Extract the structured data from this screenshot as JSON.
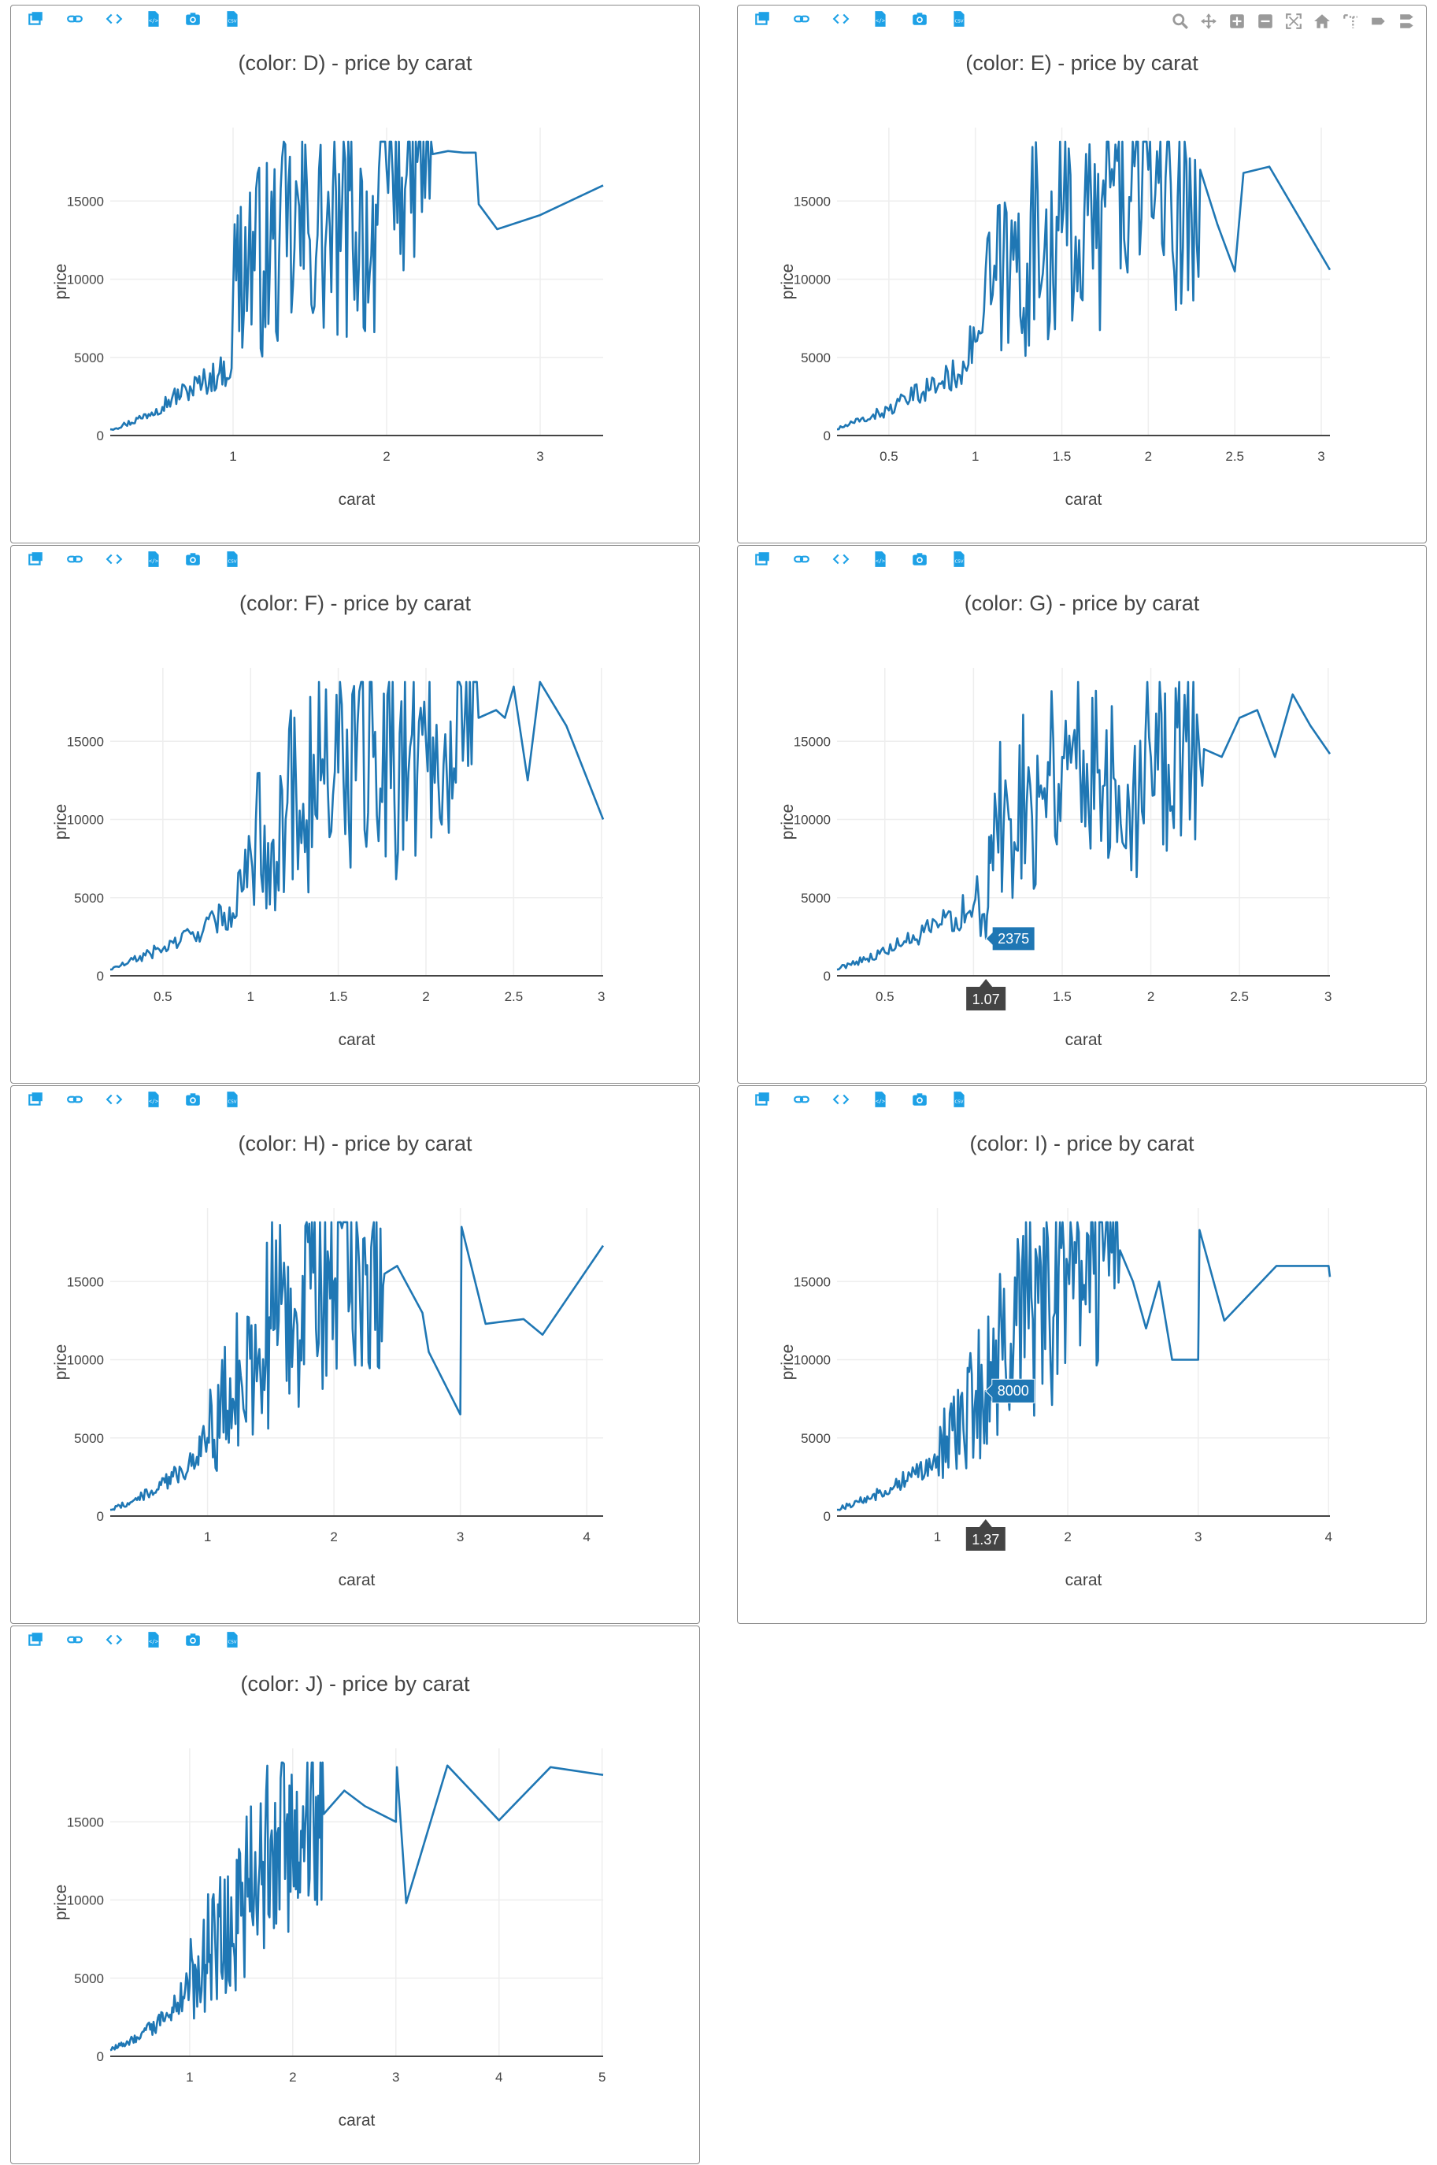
{
  "colors": {
    "line": "#1f77b4",
    "toolbar_icon": "#1da1e6",
    "modebar_icon": "#9a9a9a",
    "hover_x_bg": "#444444"
  },
  "toolbar": {
    "buttons": [
      {
        "icon": "new-window-icon"
      },
      {
        "icon": "link-icon"
      },
      {
        "icon": "code-icon"
      },
      {
        "icon": "html-file-icon"
      },
      {
        "icon": "camera-icon"
      },
      {
        "icon": "csv-file-icon"
      }
    ]
  },
  "modebar": {
    "buttons": [
      {
        "icon": "zoom-icon"
      },
      {
        "icon": "pan-icon"
      },
      {
        "icon": "zoom-in-icon"
      },
      {
        "icon": "zoom-out-icon"
      },
      {
        "icon": "autoscale-icon"
      },
      {
        "icon": "reset-axes-icon"
      },
      {
        "icon": "spike-lines-icon"
      },
      {
        "icon": "hover-closest-icon"
      },
      {
        "icon": "hover-compare-icon"
      }
    ]
  },
  "chart_data": [
    {
      "type": "line",
      "title": "(color: D) - price by carat",
      "xlabel": "carat",
      "ylabel": "price",
      "xlim": [
        0.2,
        3.41
      ],
      "ylim": [
        0,
        19700
      ],
      "xticks": [
        1,
        2,
        3
      ],
      "xtick_labels": [
        "1",
        "2",
        "3"
      ],
      "yticks": [
        0,
        5000,
        10000,
        15000
      ],
      "ytick_labels": [
        "0",
        "5000",
        "10000",
        "15000"
      ],
      "series": [
        {
          "name": "price",
          "x": [
            0.2,
            0.3,
            0.4,
            0.5,
            0.6,
            0.7,
            0.8,
            0.9,
            0.99,
            1.0,
            1.1,
            1.2,
            1.3,
            1.4,
            1.5,
            1.6,
            1.7,
            1.8,
            1.9,
            2.0,
            2.1,
            2.2,
            2.3,
            2.4,
            2.5,
            2.58,
            2.6,
            2.72,
            3.0,
            3.41
          ],
          "y": [
            400,
            700,
            1100,
            1700,
            2300,
            2800,
            3300,
            3800,
            4300,
            9000,
            11000,
            10500,
            11500,
            12000,
            12500,
            12000,
            11800,
            13000,
            11500,
            17000,
            16500,
            17500,
            18000,
            18200,
            18100,
            18100,
            14800,
            13200,
            14100,
            16000
          ]
        }
      ],
      "hover": null
    },
    {
      "type": "line",
      "title": "(color: E) - price by carat",
      "xlabel": "carat",
      "ylabel": "price",
      "xlim": [
        0.2,
        3.05
      ],
      "ylim": [
        0,
        19700
      ],
      "xticks": [
        0.5,
        1,
        1.5,
        2,
        2.5,
        3
      ],
      "xtick_labels": [
        "0.5",
        "1",
        "1.5",
        "2",
        "2.5",
        "3"
      ],
      "yticks": [
        0,
        5000,
        10000,
        15000
      ],
      "ytick_labels": [
        "0",
        "5000",
        "10000",
        "15000"
      ],
      "series": [
        {
          "name": "price",
          "x": [
            0.2,
            0.3,
            0.4,
            0.5,
            0.6,
            0.7,
            0.8,
            0.9,
            1.0,
            1.1,
            1.2,
            1.3,
            1.4,
            1.5,
            1.6,
            1.7,
            1.8,
            1.9,
            2.0,
            2.1,
            2.2,
            2.3,
            2.4,
            2.5,
            2.55,
            2.7,
            3.05
          ],
          "y": [
            400,
            800,
            1200,
            1600,
            2200,
            2800,
            3300,
            3900,
            6000,
            9000,
            10000,
            11000,
            12000,
            13000,
            12500,
            12000,
            16000,
            15000,
            17000,
            16500,
            12000,
            17000,
            13500,
            10500,
            16800,
            17200,
            10600
          ]
        }
      ],
      "hover": null
    },
    {
      "type": "line",
      "title": "(color: F) - price by carat",
      "xlabel": "carat",
      "ylabel": "price",
      "xlim": [
        0.2,
        3.01
      ],
      "ylim": [
        0,
        19700
      ],
      "xticks": [
        0.5,
        1,
        1.5,
        2,
        2.5,
        3
      ],
      "xtick_labels": [
        "0.5",
        "1",
        "1.5",
        "2",
        "2.5",
        "3"
      ],
      "yticks": [
        0,
        5000,
        10000,
        15000
      ],
      "ytick_labels": [
        "0",
        "5000",
        "10000",
        "15000"
      ],
      "series": [
        {
          "name": "price",
          "x": [
            0.2,
            0.3,
            0.4,
            0.5,
            0.6,
            0.7,
            0.8,
            0.9,
            1.0,
            1.1,
            1.2,
            1.3,
            1.4,
            1.5,
            1.6,
            1.7,
            1.8,
            1.9,
            2.0,
            2.1,
            2.2,
            2.3,
            2.4,
            2.45,
            2.5,
            2.58,
            2.65,
            2.8,
            3.01
          ],
          "y": [
            400,
            800,
            1300,
            1700,
            2200,
            2800,
            3400,
            4000,
            8000,
            8500,
            10000,
            11000,
            12500,
            13000,
            12500,
            14000,
            12000,
            13000,
            15000,
            13500,
            18500,
            16500,
            17000,
            16500,
            18500,
            12500,
            18800,
            16000,
            10000
          ]
        }
      ],
      "hover": null
    },
    {
      "type": "line",
      "title": "(color: G) - price by carat",
      "xlabel": "carat",
      "ylabel": "price",
      "xlim": [
        0.23,
        3.01
      ],
      "ylim": [
        0,
        19700
      ],
      "xticks": [
        0.5,
        1,
        1.5,
        2,
        2.5,
        3
      ],
      "xtick_labels": [
        "0.5",
        "1",
        "1.5",
        "2",
        "2.5",
        "3"
      ],
      "yticks": [
        0,
        5000,
        10000,
        15000
      ],
      "ytick_labels": [
        "0",
        "5000",
        "10000",
        "15000"
      ],
      "series": [
        {
          "name": "price",
          "x": [
            0.23,
            0.3,
            0.4,
            0.5,
            0.6,
            0.7,
            0.8,
            0.9,
            1.0,
            1.07,
            1.1,
            1.2,
            1.3,
            1.4,
            1.5,
            1.6,
            1.7,
            1.8,
            1.9,
            2.0,
            2.1,
            2.2,
            2.3,
            2.4,
            2.5,
            2.6,
            2.7,
            2.8,
            2.9,
            3.01
          ],
          "y": [
            400,
            750,
            1100,
            1500,
            2000,
            2500,
            3100,
            3700,
            4500,
            2375,
            9000,
            10000,
            11000,
            12000,
            14000,
            13500,
            13000,
            12500,
            12000,
            14000,
            13500,
            15000,
            14500,
            14000,
            16500,
            17000,
            14000,
            18000,
            16000,
            14200
          ]
        }
      ],
      "hover": {
        "x": 1.07,
        "y": 2375,
        "x_label": "1.07",
        "y_label": "2375"
      }
    },
    {
      "type": "line",
      "title": "(color: H) - price by carat",
      "xlabel": "carat",
      "ylabel": "price",
      "xlim": [
        0.23,
        4.13
      ],
      "ylim": [
        0,
        19700
      ],
      "xticks": [
        1,
        2,
        3,
        4
      ],
      "xtick_labels": [
        "1",
        "2",
        "3",
        "4"
      ],
      "yticks": [
        0,
        5000,
        10000,
        15000
      ],
      "ytick_labels": [
        "0",
        "5000",
        "10000",
        "15000"
      ],
      "series": [
        {
          "name": "price",
          "x": [
            0.23,
            0.4,
            0.6,
            0.8,
            1.0,
            1.2,
            1.4,
            1.5,
            1.7,
            1.9,
            2.0,
            2.2,
            2.4,
            2.5,
            2.7,
            2.75,
            3.0,
            3.01,
            3.2,
            3.5,
            3.65,
            4.13
          ],
          "y": [
            400,
            900,
            1700,
            2800,
            5000,
            7500,
            10000,
            12000,
            13000,
            14000,
            15000,
            16000,
            15500,
            16000,
            13000,
            10500,
            6500,
            18500,
            12300,
            12600,
            11600,
            17300
          ]
        }
      ],
      "hover": null
    },
    {
      "type": "line",
      "title": "(color: I) - price by carat",
      "xlabel": "carat",
      "ylabel": "price",
      "xlim": [
        0.23,
        4.01
      ],
      "ylim": [
        0,
        19700
      ],
      "xticks": [
        1,
        2,
        3,
        4
      ],
      "xtick_labels": [
        "1",
        "2",
        "3",
        "4"
      ],
      "yticks": [
        0,
        5000,
        10000,
        15000
      ],
      "ytick_labels": [
        "0",
        "5000",
        "10000",
        "15000"
      ],
      "series": [
        {
          "name": "price",
          "x": [
            0.23,
            0.4,
            0.6,
            0.8,
            1.0,
            1.2,
            1.37,
            1.5,
            1.7,
            1.9,
            2.0,
            2.2,
            2.4,
            2.5,
            2.6,
            2.7,
            2.8,
            3.0,
            3.01,
            3.2,
            3.6,
            4.0,
            4.01
          ],
          "y": [
            400,
            900,
            1600,
            2500,
            3800,
            5500,
            8000,
            10000,
            12000,
            13000,
            16000,
            15500,
            17000,
            15000,
            12000,
            15000,
            10000,
            10000,
            18300,
            12500,
            16000,
            16000,
            15300
          ]
        }
      ],
      "hover": {
        "x": 1.37,
        "y": 8000,
        "x_label": "1.37",
        "y_label": "8000"
      }
    },
    {
      "type": "line",
      "title": "(color: J) - price by carat",
      "xlabel": "carat",
      "ylabel": "price",
      "xlim": [
        0.23,
        5.01
      ],
      "ylim": [
        0,
        19700
      ],
      "xticks": [
        1,
        2,
        3,
        4,
        5
      ],
      "xtick_labels": [
        "1",
        "2",
        "3",
        "4",
        "5"
      ],
      "yticks": [
        0,
        5000,
        10000,
        15000
      ],
      "ytick_labels": [
        "0",
        "5000",
        "10000",
        "15000"
      ],
      "series": [
        {
          "name": "price",
          "x": [
            0.23,
            0.5,
            0.8,
            1.0,
            1.2,
            1.5,
            1.7,
            2.0,
            2.1,
            2.3,
            2.5,
            2.7,
            3.0,
            3.01,
            3.1,
            3.5,
            4.0,
            4.5,
            5.01
          ],
          "y": [
            400,
            1200,
            2500,
            4500,
            6500,
            9000,
            11000,
            13000,
            16000,
            15500,
            17000,
            16000,
            15000,
            18500,
            9800,
            18600,
            15100,
            18500,
            18000
          ]
        }
      ],
      "hover": null
    }
  ]
}
